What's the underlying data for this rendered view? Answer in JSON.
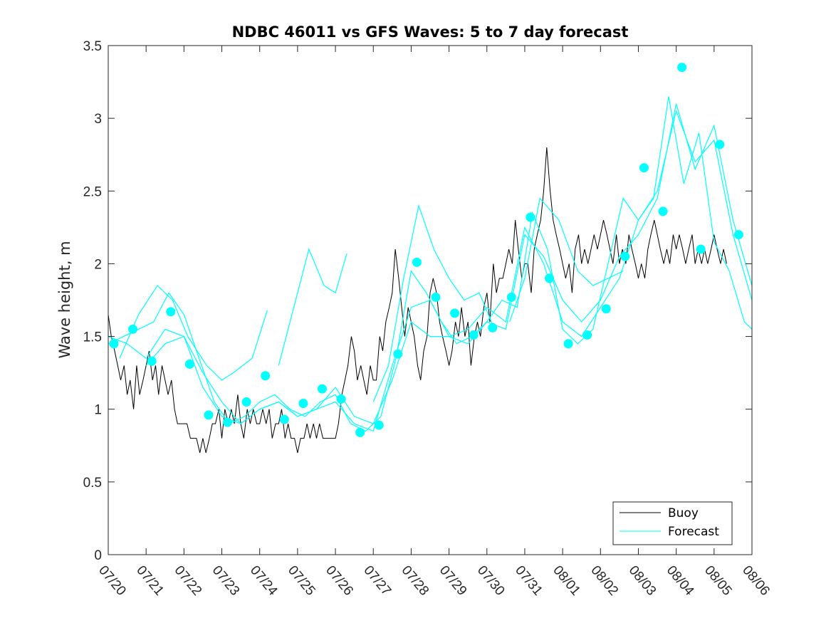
{
  "chart_data": {
    "type": "line",
    "title": "NDBC 46011 vs GFS Waves: 5 to 7 day forecast",
    "xlabel": "",
    "ylabel": "Wave height, m",
    "x_tick_labels": [
      "07/20",
      "07/21",
      "07/22",
      "07/23",
      "07/24",
      "07/25",
      "07/26",
      "07/27",
      "07/28",
      "07/29",
      "07/30",
      "07/31",
      "08/01",
      "08/02",
      "08/03",
      "08/04",
      "08/05",
      "08/06"
    ],
    "y_ticks": [
      0,
      0.5,
      1,
      1.5,
      2,
      2.5,
      3,
      3.5
    ],
    "y_tick_labels": [
      "0",
      "0.5",
      "1",
      "1.5",
      "2",
      "2.5",
      "3",
      "3.5"
    ],
    "xlim": [
      0,
      17
    ],
    "ylim": [
      0,
      3.5
    ],
    "x_unit": "days since 07/20",
    "grid": false,
    "legend_position": "bottom-right",
    "colors": {
      "buoy": "#000000",
      "forecast": "#00ffff",
      "markers": "#00ffff",
      "axis": "#262626"
    },
    "series": [
      {
        "name": "Buoy",
        "style": "line",
        "x": [
          0,
          0.08,
          0.17,
          0.25,
          0.33,
          0.42,
          0.5,
          0.58,
          0.67,
          0.75,
          0.83,
          0.92,
          1.0,
          1.08,
          1.17,
          1.25,
          1.33,
          1.42,
          1.5,
          1.58,
          1.67,
          1.75,
          1.83,
          1.92,
          2.0,
          2.08,
          2.17,
          2.25,
          2.33,
          2.42,
          2.5,
          2.58,
          2.67,
          2.75,
          2.83,
          2.92,
          3.0,
          3.08,
          3.17,
          3.25,
          3.33,
          3.42,
          3.5,
          3.58,
          3.67,
          3.75,
          3.83,
          3.92,
          4.0,
          4.08,
          4.17,
          4.25,
          4.33,
          4.42,
          4.5,
          4.58,
          4.67,
          4.75,
          4.83,
          4.92,
          5.0,
          5.08,
          5.17,
          5.25,
          5.33,
          5.42,
          5.5,
          5.58,
          5.67,
          5.75,
          5.83,
          5.92,
          6.0,
          6.08,
          6.17,
          6.25,
          6.33,
          6.42,
          6.5,
          6.58,
          6.67,
          6.75,
          6.83,
          6.92,
          7.0,
          7.08,
          7.17,
          7.25,
          7.33,
          7.42,
          7.5,
          7.58,
          7.67,
          7.75,
          7.83,
          7.92,
          8.0,
          8.08,
          8.17,
          8.25,
          8.33,
          8.42,
          8.5,
          8.58,
          8.67,
          8.75,
          8.83,
          8.92,
          9.0,
          9.08,
          9.17,
          9.25,
          9.33,
          9.42,
          9.5,
          9.58,
          9.67,
          9.75,
          9.83,
          9.92,
          10.0,
          10.08,
          10.17,
          10.25,
          10.33,
          10.42,
          10.5,
          10.58,
          10.67,
          10.75,
          10.83,
          10.92,
          11.0,
          11.08,
          11.17,
          11.25,
          11.33,
          11.42,
          11.5,
          11.58,
          11.67,
          11.75,
          11.83,
          11.92,
          12.0,
          12.08,
          12.17,
          12.25,
          12.33,
          12.42,
          12.5,
          12.58,
          12.67,
          12.75,
          12.83,
          12.92,
          13.0,
          13.08,
          13.17,
          13.25,
          13.33,
          13.42,
          13.5,
          13.58,
          13.67,
          13.75,
          13.83,
          13.92,
          14.0,
          14.08,
          14.17,
          14.25,
          14.33,
          14.42,
          14.5,
          14.58,
          14.67,
          14.75,
          14.83,
          14.92,
          15.0,
          15.08,
          15.17,
          15.25,
          15.33,
          15.42,
          15.5,
          15.58,
          15.67,
          15.75,
          15.83,
          15.92,
          16.0,
          16.08,
          16.17,
          16.25,
          16.33
        ],
        "y": [
          1.65,
          1.5,
          1.4,
          1.3,
          1.2,
          1.3,
          1.1,
          1.2,
          1.0,
          1.3,
          1.1,
          1.2,
          1.3,
          1.4,
          1.2,
          1.3,
          1.1,
          1.3,
          1.2,
          1.1,
          1.2,
          1.0,
          0.9,
          0.9,
          0.9,
          0.9,
          0.8,
          0.8,
          0.8,
          0.7,
          0.8,
          0.7,
          0.8,
          0.9,
          0.9,
          1.0,
          0.8,
          1.0,
          0.9,
          1.0,
          0.9,
          1.1,
          0.9,
          0.8,
          1.0,
          0.9,
          1.0,
          0.9,
          0.9,
          1.0,
          0.9,
          1.0,
          0.8,
          0.9,
          0.9,
          1.0,
          0.8,
          0.9,
          0.8,
          0.8,
          0.7,
          0.8,
          0.8,
          0.9,
          0.8,
          0.9,
          0.8,
          0.9,
          0.8,
          0.8,
          0.8,
          0.8,
          0.8,
          0.9,
          1.1,
          1.2,
          1.3,
          1.5,
          1.4,
          1.2,
          1.3,
          1.2,
          1.1,
          1.3,
          1.2,
          1.2,
          1.5,
          1.4,
          1.6,
          1.7,
          1.8,
          2.1,
          1.9,
          1.7,
          1.5,
          1.7,
          1.6,
          1.5,
          1.3,
          1.2,
          1.4,
          1.5,
          1.8,
          1.9,
          1.8,
          1.6,
          1.5,
          1.4,
          1.3,
          1.4,
          1.6,
          1.5,
          1.7,
          1.5,
          1.6,
          1.3,
          1.5,
          1.6,
          1.5,
          1.7,
          1.8,
          1.6,
          2.0,
          1.8,
          1.9,
          1.9,
          2.0,
          2.1,
          2.0,
          2.3,
          2.1,
          1.9,
          2.0,
          2.0,
          1.8,
          2.1,
          2.2,
          2.3,
          2.5,
          2.8,
          2.5,
          2.3,
          2.2,
          2.1,
          2.0,
          1.9,
          2.0,
          1.8,
          2.1,
          2.2,
          2.0,
          2.1,
          2.0,
          2.1,
          2.2,
          2.1,
          2.2,
          2.3,
          2.2,
          2.1,
          2.0,
          2.2,
          2.0,
          2.1,
          2.0,
          2.2,
          2.1,
          2.0,
          1.9,
          2.0,
          1.9,
          2.1,
          2.2,
          2.3,
          2.2,
          2.1,
          2.0,
          2.1,
          2.0,
          2.2,
          2.1,
          2.2,
          2.1,
          2.0,
          2.1,
          2.2,
          2.0,
          2.1,
          2.0,
          2.1,
          2.0,
          2.1,
          2.2,
          2.1,
          2.0,
          2.1,
          2.0
        ]
      },
      {
        "name": "Forecast",
        "style": "line",
        "segments": [
          {
            "x": [
              0.0,
              0.4,
              0.8,
              1.2,
              1.6,
              2.0,
              2.4,
              2.8,
              3.2,
              3.6,
              4.0,
              4.4,
              4.8,
              5.2,
              5.6,
              6.0,
              6.4,
              6.8,
              7.2,
              7.6,
              8.0,
              8.4,
              8.8,
              9.2,
              9.6,
              10.0,
              10.4,
              10.8,
              11.2,
              11.6,
              12.0,
              12.4,
              12.8,
              13.2,
              13.6,
              14.0,
              14.4,
              14.8,
              15.2,
              15.6,
              16.0,
              16.4,
              16.8,
              17.0
            ],
            "y": [
              1.45,
              1.5,
              1.55,
              1.6,
              1.8,
              1.65,
              1.35,
              1.05,
              0.9,
              0.95,
              1.05,
              1.1,
              1.0,
              0.95,
              1.05,
              1.1,
              0.9,
              0.85,
              0.95,
              1.35,
              1.95,
              1.8,
              1.6,
              1.45,
              1.5,
              1.6,
              1.75,
              1.7,
              2.35,
              2.1,
              1.55,
              1.45,
              1.55,
              2.0,
              2.45,
              2.3,
              2.45,
              3.15,
              2.55,
              2.9,
              2.15,
              1.95,
              1.6,
              1.55
            ]
          },
          {
            "x": [
              0.0,
              0.5,
              1.0,
              1.5,
              2.0,
              2.5,
              3.0,
              3.5,
              4.0,
              4.5,
              5.0,
              5.5,
              6.0,
              6.5,
              7.0,
              7.5,
              8.0,
              8.5,
              9.0,
              9.5,
              10.0,
              10.5,
              11.0,
              11.5,
              12.0,
              12.5,
              13.0,
              13.5,
              14.0,
              14.5,
              15.0,
              15.5,
              16.0,
              16.5,
              17.0
            ],
            "y": [
              1.5,
              1.45,
              1.35,
              1.55,
              1.5,
              1.15,
              0.95,
              0.9,
              1.0,
              1.05,
              0.95,
              1.0,
              1.05,
              0.9,
              0.85,
              1.3,
              1.7,
              1.75,
              1.5,
              1.55,
              1.7,
              1.6,
              2.25,
              2.0,
              1.6,
              1.5,
              1.7,
              1.9,
              2.3,
              2.5,
              3.05,
              2.7,
              2.85,
              2.2,
              1.75
            ]
          },
          {
            "x": [
              1.0,
              1.5,
              2.0,
              2.5,
              3.0,
              3.5,
              4.0,
              4.5,
              5.0,
              5.5,
              6.0,
              6.5,
              7.0,
              7.5,
              8.0,
              8.5,
              9.0,
              9.5,
              10.0,
              10.5,
              11.0,
              11.5,
              12.0,
              12.5,
              13.0,
              13.5,
              14.0,
              14.5,
              15.0,
              15.5,
              16.0,
              16.5,
              17.0
            ],
            "y": [
              1.3,
              1.45,
              1.5,
              1.25,
              1.05,
              0.9,
              1.0,
              1.05,
              0.95,
              1.0,
              1.15,
              0.95,
              0.9,
              1.2,
              1.6,
              1.5,
              1.5,
              1.45,
              1.6,
              1.55,
              2.2,
              2.05,
              1.75,
              1.6,
              1.75,
              2.05,
              2.2,
              2.45,
              3.1,
              2.65,
              2.95,
              2.3,
              1.85
            ]
          },
          {
            "x": [
              0.3,
              0.8,
              1.3,
              1.7,
              2.1,
              2.6,
              3.0,
              3.3,
              3.8,
              4.2
            ],
            "y": [
              1.35,
              1.65,
              1.85,
              1.75,
              1.5,
              1.3,
              1.2,
              1.25,
              1.35,
              1.68
            ]
          },
          {
            "x": [
              4.5,
              4.9,
              5.3,
              5.7,
              6.0,
              6.3
            ],
            "y": [
              1.3,
              1.7,
              2.1,
              1.85,
              1.8,
              2.07
            ]
          },
          {
            "x": [
              7.0,
              7.4,
              7.8,
              8.2,
              8.6,
              9.0,
              9.4,
              9.8,
              10.2
            ],
            "y": [
              1.05,
              1.3,
              1.9,
              2.4,
              2.1,
              1.9,
              1.75,
              1.8,
              1.55
            ]
          },
          {
            "x": [
              10.6,
              11.0,
              11.4,
              11.9,
              12.4,
              12.8,
              13.2,
              13.6
            ],
            "y": [
              1.6,
              1.9,
              2.45,
              2.3,
              1.95,
              1.85,
              1.9,
              1.95
            ]
          }
        ]
      },
      {
        "name": "",
        "style": "markers",
        "x": [
          0.15,
          0.65,
          1.15,
          1.65,
          2.15,
          2.65,
          3.15,
          3.65,
          4.15,
          4.65,
          5.15,
          5.65,
          6.15,
          6.65,
          7.15,
          7.65,
          8.15,
          8.65,
          9.15,
          9.65,
          10.15,
          10.65,
          11.15,
          11.65,
          12.15,
          12.65,
          13.15,
          13.65,
          14.15,
          14.65,
          15.15,
          15.65,
          16.15,
          16.65
        ],
        "y": [
          1.45,
          1.55,
          1.33,
          1.67,
          1.31,
          0.96,
          0.91,
          1.05,
          1.23,
          0.93,
          1.04,
          1.14,
          1.07,
          0.84,
          0.89,
          1.38,
          2.01,
          1.77,
          1.66,
          1.51,
          1.56,
          1.77,
          2.32,
          1.9,
          1.45,
          1.51,
          1.69,
          2.05,
          2.66,
          2.36,
          3.35,
          2.1,
          2.82,
          2.2
        ]
      }
    ],
    "legend": [
      "Buoy",
      "Forecast"
    ]
  }
}
